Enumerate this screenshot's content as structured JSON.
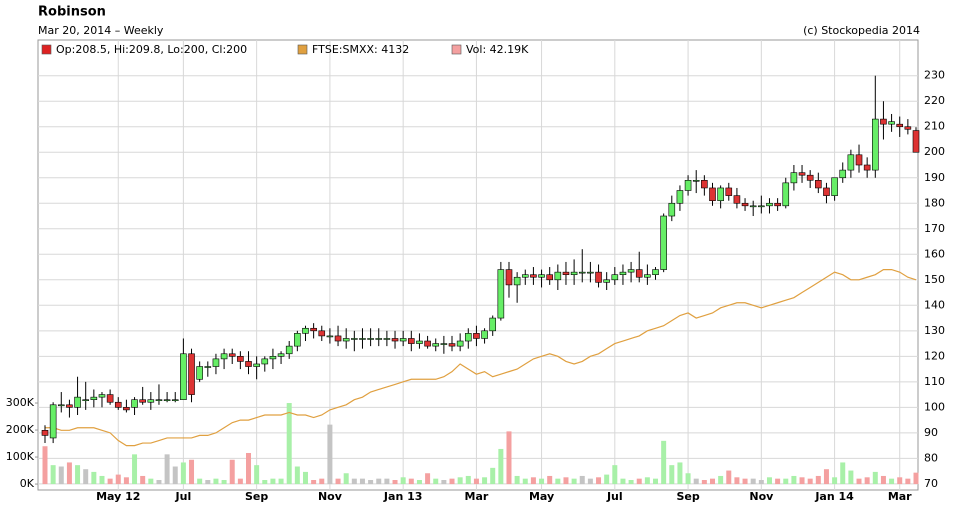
{
  "chart_data": {
    "type": "candlestick",
    "title": "Robinson",
    "subtitle": "Mar 20, 2014 – Weekly",
    "source": "(c) Stockopedia 2014",
    "categories": [
      null,
      null,
      null,
      null,
      null,
      null,
      null,
      null,
      null,
      "May 12",
      null,
      null,
      null,
      null,
      null,
      null,
      null,
      "Jul",
      null,
      null,
      null,
      null,
      null,
      null,
      null,
      null,
      "Sep",
      null,
      null,
      null,
      null,
      null,
      null,
      null,
      null,
      "Nov",
      null,
      null,
      null,
      null,
      null,
      null,
      null,
      null,
      "Jan 13",
      null,
      null,
      null,
      null,
      null,
      null,
      null,
      null,
      "Mar",
      null,
      null,
      null,
      null,
      null,
      null,
      null,
      "May",
      null,
      null,
      null,
      null,
      null,
      null,
      null,
      null,
      "Jul",
      null,
      null,
      null,
      null,
      null,
      null,
      null,
      null,
      "Sep",
      null,
      null,
      null,
      null,
      null,
      null,
      null,
      null,
      "Nov",
      null,
      null,
      null,
      null,
      null,
      null,
      null,
      null,
      "Jan 14",
      null,
      null,
      null,
      null,
      null,
      null,
      null,
      "Mar",
      null,
      null
    ],
    "series": [
      {
        "name": "Op:208.5, Hi:209.8, Lo:200, Cl:200",
        "color": "#dd2222",
        "up_color": "#66ee66",
        "down_color": "#dd3333",
        "open": [
          91,
          88,
          101,
          101,
          100,
          103,
          103,
          104,
          105,
          102,
          100,
          100,
          103,
          102,
          103,
          103,
          103,
          103,
          121,
          111,
          116,
          116,
          119,
          121,
          120,
          118,
          116,
          117,
          119,
          120,
          121,
          124,
          129,
          131,
          130,
          128,
          128,
          126,
          127,
          127,
          127,
          127,
          127,
          127,
          126,
          127,
          125,
          126,
          124,
          125,
          125,
          124,
          126,
          129,
          127,
          130,
          135,
          154,
          148,
          151,
          152,
          151,
          152,
          150,
          153,
          152,
          153,
          153,
          153,
          149,
          150,
          152,
          153,
          154,
          151,
          152,
          154,
          175,
          180,
          185,
          189,
          189,
          186,
          181,
          186,
          183,
          180,
          179,
          179,
          179,
          180,
          179,
          188,
          192,
          191,
          189,
          186,
          183,
          190,
          193,
          199,
          195,
          193,
          213,
          211,
          211,
          210,
          208.5
        ],
        "high": [
          93,
          102,
          106,
          103,
          112,
          110,
          107,
          106,
          107,
          104,
          103,
          104,
          108,
          106,
          109,
          106,
          106,
          127,
          123,
          118,
          118,
          121,
          123,
          123,
          122,
          122,
          120,
          120,
          123,
          122,
          126,
          130,
          132,
          133,
          132,
          131,
          132,
          131,
          130,
          131,
          131,
          131,
          130,
          130,
          130,
          130,
          129,
          128,
          127,
          128,
          128,
          129,
          131,
          132,
          131,
          136,
          157,
          157,
          153,
          154,
          155,
          154,
          155,
          156,
          157,
          158,
          162,
          157,
          156,
          153,
          155,
          156,
          157,
          161,
          156,
          155,
          176,
          183,
          187,
          191,
          193,
          191,
          188,
          187,
          188,
          186,
          182,
          181,
          183,
          182,
          182,
          190,
          195,
          195,
          193,
          192,
          188,
          190,
          196,
          201,
          203,
          198,
          230,
          220,
          215,
          214,
          213,
          209.8
        ],
        "low": [
          86,
          86,
          98,
          96,
          97,
          99,
          100,
          100,
          101,
          99,
          98,
          97,
          101,
          99,
          101,
          102,
          102,
          103,
          102,
          110,
          112,
          113,
          115,
          117,
          115,
          113,
          111,
          114,
          115,
          117,
          119,
          122,
          126,
          127,
          126,
          125,
          124,
          123,
          122,
          123,
          124,
          124,
          124,
          123,
          124,
          122,
          123,
          123,
          122,
          121,
          122,
          122,
          123,
          124,
          125,
          128,
          134,
          143,
          141,
          148,
          148,
          147,
          148,
          146,
          148,
          148,
          149,
          149,
          147,
          146,
          148,
          148,
          149,
          149,
          148,
          150,
          153,
          173,
          177,
          183,
          184,
          183,
          179,
          178,
          181,
          178,
          177,
          175,
          176,
          176,
          177,
          178,
          185,
          188,
          186,
          184,
          180,
          181,
          188,
          190,
          192,
          190,
          190,
          205,
          208,
          206,
          207,
          200
        ],
        "close": [
          89,
          101,
          101,
          100,
          104,
          103,
          104,
          105,
          102,
          100,
          99,
          103,
          102,
          103,
          103,
          103,
          103,
          121,
          105,
          116,
          116,
          119,
          121,
          120,
          118,
          116,
          117,
          119,
          120,
          121,
          124,
          129,
          131,
          130,
          128,
          128,
          126,
          127,
          127,
          127,
          127,
          127,
          127,
          126,
          127,
          125,
          126,
          124,
          125,
          125,
          124,
          126,
          129,
          127,
          130,
          135,
          154,
          148,
          151,
          152,
          151,
          152,
          150,
          153,
          152,
          153,
          153,
          153,
          149,
          150,
          152,
          153,
          154,
          151,
          152,
          154,
          175,
          180,
          185,
          189,
          189,
          186,
          181,
          186,
          183,
          180,
          179,
          179,
          179,
          180,
          179,
          188,
          192,
          191,
          189,
          186,
          183,
          190,
          193,
          199,
          195,
          193,
          213,
          211,
          212,
          210,
          209,
          200
        ]
      },
      {
        "name": "FTSE:SMXX: 4132",
        "color": "#e0a040",
        "values": [
          92,
          92,
          91,
          91,
          92,
          92,
          92,
          91,
          90,
          87,
          85,
          85,
          86,
          86,
          87,
          88,
          88,
          88,
          88,
          89,
          89,
          90,
          92,
          94,
          95,
          95,
          96,
          97,
          97,
          97,
          98,
          97,
          97,
          96,
          97,
          99,
          100,
          101,
          103,
          104,
          106,
          107,
          108,
          109,
          110,
          111,
          111,
          111,
          111,
          112,
          114,
          117,
          115,
          113,
          114,
          112,
          113,
          114,
          115,
          117,
          119,
          120,
          121,
          120,
          118,
          117,
          118,
          120,
          121,
          123,
          125,
          126,
          127,
          128,
          130,
          131,
          132,
          134,
          136,
          137,
          135,
          136,
          137,
          139,
          140,
          141,
          141,
          140,
          139,
          140,
          141,
          142,
          143,
          145,
          147,
          149,
          151,
          153,
          152,
          150,
          150,
          151,
          152,
          154,
          154,
          153,
          151,
          150
        ]
      },
      {
        "name": "Vol: 42.19K",
        "color": "#f4a0a0",
        "axis": "y2",
        "up_color": "#a8f0a8",
        "down_color": "#f4a0a0",
        "flat_color": "#c4c4c4",
        "values": [
          140000,
          70000,
          65000,
          80000,
          70000,
          55000,
          45000,
          30000,
          20000,
          35000,
          25000,
          110000,
          30000,
          20000,
          15000,
          110000,
          65000,
          80000,
          90000,
          20000,
          15000,
          20000,
          15000,
          90000,
          20000,
          115000,
          70000,
          15000,
          20000,
          20000,
          300000,
          65000,
          45000,
          15000,
          20000,
          220000,
          20000,
          40000,
          20000,
          20000,
          15000,
          20000,
          20000,
          15000,
          25000,
          20000,
          15000,
          40000,
          20000,
          15000,
          20000,
          25000,
          30000,
          20000,
          25000,
          60000,
          130000,
          195000,
          30000,
          20000,
          25000,
          20000,
          30000,
          20000,
          25000,
          20000,
          30000,
          20000,
          25000,
          35000,
          70000,
          20000,
          15000,
          20000,
          25000,
          20000,
          160000,
          70000,
          80000,
          40000,
          20000,
          15000,
          20000,
          30000,
          50000,
          25000,
          20000,
          20000,
          15000,
          25000,
          20000,
          20000,
          30000,
          25000,
          20000,
          30000,
          55000,
          25000,
          80000,
          50000,
          20000,
          25000,
          45000,
          30000,
          20000,
          25000,
          20000,
          42190
        ]
      }
    ],
    "ylim": [
      67.6,
      244
    ],
    "yticks": [
      70,
      80,
      90,
      100,
      110,
      120,
      130,
      140,
      150,
      160,
      170,
      180,
      190,
      200,
      210,
      220,
      230
    ],
    "y2lim": [
      -22000,
      1644000
    ],
    "y2ticks": [
      {
        "value": 0,
        "label": "0K"
      },
      {
        "value": 100000,
        "label": "100K"
      },
      {
        "value": 200000,
        "label": "200K"
      },
      {
        "value": 300000,
        "label": "300K"
      }
    ],
    "grid": true
  }
}
